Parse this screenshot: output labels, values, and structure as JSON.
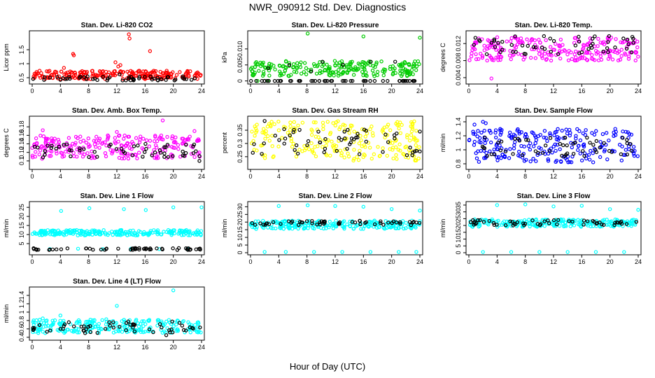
{
  "page": {
    "title": "NWR_090912 Std. Dev. Diagnostics",
    "xlabel": "Hour of Day (UTC)"
  },
  "chart_data": [
    {
      "type": "scatter",
      "title": "Stan. Dev. Li-820 CO2",
      "ylabel": "Licor ppm",
      "xlim": [
        0,
        24
      ],
      "ylim": [
        0.35,
        2.1
      ],
      "xticks": [
        0,
        4,
        8,
        12,
        16,
        20,
        24
      ],
      "yticks": [
        0.5,
        1.0,
        1.5
      ],
      "series": [
        {
          "color": "#ff0000",
          "band": [
            0.45,
            0.75
          ],
          "outliers": [
            [
              5.8,
              1.35
            ],
            [
              5.9,
              1.3
            ],
            [
              13.7,
              2.05
            ],
            [
              13.8,
              1.9
            ],
            [
              16.7,
              1.45
            ],
            [
              11.8,
              1.05
            ],
            [
              12.2,
              0.9
            ],
            [
              4.5,
              0.85
            ],
            [
              12.5,
              0.95
            ]
          ]
        },
        {
          "color": "#000000",
          "band": [
            0.4,
            0.55
          ],
          "outliers": [
            [
              12.4,
              0.62
            ]
          ]
        }
      ]
    },
    {
      "type": "scatter",
      "title": "Stan. Dev. Li-820 Pressure",
      "ylabel": "kPa",
      "xlim": [
        0,
        24
      ],
      "ylim": [
        -0.0003,
        0.015
      ],
      "xticks": [
        0,
        4,
        8,
        12,
        16,
        20,
        24
      ],
      "yticks": [
        0.0,
        0.005,
        0.01
      ],
      "series": [
        {
          "color": "#00cc00",
          "band": [
            0.0015,
            0.0063
          ],
          "outliers": [
            [
              8.1,
              0.0148
            ],
            [
              16.0,
              0.0139
            ],
            [
              24.0,
              0.0135
            ],
            [
              1.0,
              0.0
            ],
            [
              2.5,
              0.0
            ]
          ]
        },
        {
          "color": "#000000",
          "band": [
            0.0,
            0.0
          ],
          "outliers": [
            [
              2.5,
              0.004
            ],
            [
              5.5,
              0.005
            ],
            [
              10.2,
              0.006
            ],
            [
              13.1,
              0.005
            ],
            [
              17.0,
              0.006
            ],
            [
              20.5,
              0.006
            ],
            [
              8.6,
              0.003
            ]
          ]
        }
      ]
    },
    {
      "type": "scatter",
      "title": "Stan. Dev. Li-820 Temp.",
      "ylabel": "degrees C",
      "xlim": [
        0,
        24
      ],
      "ylim": [
        0.003,
        0.0145
      ],
      "xticks": [
        0,
        4,
        8,
        12,
        16,
        20,
        24
      ],
      "yticks": [
        0.004,
        0.008,
        0.012
      ],
      "series": [
        {
          "color": "#ff00ff",
          "band": [
            0.008,
            0.0135
          ],
          "outliers": [
            [
              3.2,
              0.0038
            ],
            [
              0.5,
              0.0105
            ],
            [
              1.0,
              0.0095
            ],
            [
              22.4,
              0.0112
            ],
            [
              12.8,
              0.0114
            ]
          ]
        },
        {
          "color": "#000000",
          "band": [
            0.0095,
            0.0139
          ],
          "outliers": []
        }
      ]
    },
    {
      "type": "scatter",
      "title": "Stan. Dev. Amb. Box Temp.",
      "ylabel": "degrees C",
      "xlim": [
        0,
        24
      ],
      "ylim": [
        0.085,
        0.2
      ],
      "xticks": [
        0,
        4,
        8,
        12,
        16,
        20,
        24
      ],
      "yticks": [
        0.1,
        0.12,
        0.14,
        0.16,
        0.18
      ],
      "series": [
        {
          "color": "#ff00ff",
          "band": [
            0.105,
            0.16
          ],
          "outliers": [
            [
              18.5,
              0.195
            ],
            [
              1.5,
              0.172
            ],
            [
              23.0,
              0.17
            ],
            [
              12.0,
              0.168
            ]
          ]
        },
        {
          "color": "#000000",
          "band": [
            0.108,
            0.14
          ],
          "outliers": [
            [
              23.7,
              0.1
            ]
          ]
        }
      ]
    },
    {
      "type": "scatter",
      "title": "Stan. Dev. Gas Stream RH",
      "ylabel": "percent",
      "xlim": [
        0,
        24
      ],
      "ylim": [
        0.21,
        0.395
      ],
      "xticks": [
        0,
        4,
        8,
        12,
        16,
        20,
        24
      ],
      "yticks": [
        0.25,
        0.3,
        0.35
      ],
      "series": [
        {
          "color": "#ffff00",
          "band": [
            0.235,
            0.385
          ],
          "outliers": []
        },
        {
          "color": "#000000",
          "band": [
            0.255,
            0.355
          ],
          "outliers": [
            [
              2.0,
              0.385
            ],
            [
              24.0,
              0.345
            ]
          ]
        }
      ]
    },
    {
      "type": "scatter",
      "title": "Stan. Dev. Sample Flow",
      "ylabel": "ml/min",
      "xlim": [
        0,
        24
      ],
      "ylim": [
        0.75,
        1.45
      ],
      "xticks": [
        0,
        4,
        8,
        12,
        16,
        20,
        24
      ],
      "yticks": [
        0.8,
        1.0,
        1.2,
        1.4
      ],
      "series": [
        {
          "color": "#0000ff",
          "band": [
            0.82,
            1.3
          ],
          "outliers": [
            [
              2.0,
              1.4
            ],
            [
              2.4,
              1.38
            ],
            [
              0.8,
              1.36
            ]
          ]
        },
        {
          "color": "#000000",
          "band": [
            0.9,
            1.18
          ],
          "outliers": []
        }
      ]
    },
    {
      "type": "scatter",
      "title": "Stan. Dev. Line 1 Flow",
      "ylabel": "ml/min",
      "xlim": [
        0,
        24
      ],
      "ylim": [
        0,
        27
      ],
      "xticks": [
        0,
        4,
        8,
        12,
        16,
        20,
        24
      ],
      "yticks": [
        5,
        10,
        15,
        20,
        25
      ],
      "series": [
        {
          "color": "#00ffff",
          "band": [
            9.5,
            12.5
          ],
          "outliers": [
            [
              4.1,
              23.0
            ],
            [
              8.1,
              24.5
            ],
            [
              13.0,
              24.0
            ],
            [
              16.1,
              23.5
            ],
            [
              20.0,
              25.0
            ],
            [
              24.0,
              25.0
            ],
            [
              2.5,
              2.0
            ],
            [
              6.5,
              2.2
            ],
            [
              10.0,
              2.0
            ],
            [
              14.0,
              2.2
            ],
            [
              18.0,
              2.0
            ],
            [
              22.0,
              2.1
            ]
          ]
        },
        {
          "color": "#000000",
          "band": [
            1.5,
            2.6
          ],
          "outliers": []
        }
      ]
    },
    {
      "type": "scatter",
      "title": "Stan. Dev. Line 2 Flow",
      "ylabel": "ml/min",
      "xlim": [
        0,
        24
      ],
      "ylim": [
        0,
        32
      ],
      "xticks": [
        0,
        4,
        8,
        12,
        16,
        20,
        24
      ],
      "yticks": [
        0,
        5,
        10,
        15,
        20,
        25,
        30
      ],
      "series": [
        {
          "color": "#00ffff",
          "band": [
            15.5,
            21.0
          ],
          "outliers": [
            [
              4.0,
              30.5
            ],
            [
              8.1,
              31.0
            ],
            [
              12.0,
              30.5
            ],
            [
              16.0,
              30.0
            ],
            [
              20.0,
              28.5
            ],
            [
              24.0,
              27.5
            ],
            [
              2.0,
              0.5
            ],
            [
              5.0,
              0.5
            ],
            [
              9.0,
              0.5
            ],
            [
              13.0,
              0.5
            ],
            [
              17.0,
              0.5
            ],
            [
              21.0,
              0.5
            ],
            [
              23.5,
              0.5
            ]
          ]
        },
        {
          "color": "#000000",
          "band": [
            18.0,
            21.0
          ],
          "outliers": []
        }
      ]
    },
    {
      "type": "scatter",
      "title": "Stan. Dev. Line 3 Flow",
      "ylabel": "ml/min",
      "xlim": [
        0,
        24
      ],
      "ylim": [
        0,
        36
      ],
      "xticks": [
        0,
        4,
        8,
        12,
        16,
        20,
        24
      ],
      "yticks": [
        0,
        5,
        10,
        15,
        20,
        25,
        30,
        35
      ],
      "series": [
        {
          "color": "#00ffff",
          "band": [
            19.0,
            24.5
          ],
          "outliers": [
            [
              4.0,
              35.0
            ],
            [
              8.0,
              35.5
            ],
            [
              12.0,
              34.0
            ],
            [
              16.0,
              34.5
            ],
            [
              20.0,
              32.0
            ],
            [
              24.0,
              31.5
            ],
            [
              2.0,
              0.5
            ],
            [
              6.0,
              0.5
            ],
            [
              10.0,
              0.5
            ],
            [
              14.0,
              0.5
            ],
            [
              18.0,
              0.5
            ],
            [
              22.0,
              0.5
            ]
          ]
        },
        {
          "color": "#000000",
          "band": [
            20.0,
            24.0
          ],
          "outliers": []
        }
      ]
    },
    {
      "type": "scatter",
      "title": "Stan. Dev. Line 4 (LT) Flow",
      "ylabel": "ml/min",
      "xlim": [
        0,
        24
      ],
      "ylim": [
        0.38,
        1.55
      ],
      "xticks": [
        0,
        4,
        8,
        12,
        16,
        20,
        24
      ],
      "yticks": [
        0.4,
        0.6,
        0.8,
        1.0,
        1.2,
        1.4
      ],
      "series": [
        {
          "color": "#00ffff",
          "band": [
            0.5,
            0.82
          ],
          "outliers": [
            [
              20.0,
              1.52
            ],
            [
              12.0,
              1.15
            ],
            [
              4.0,
              0.92
            ],
            [
              1.5,
              0.85
            ],
            [
              10.5,
              0.83
            ]
          ]
        },
        {
          "color": "#000000",
          "band": [
            0.5,
            0.78
          ],
          "outliers": [
            [
              19.0,
              0.45
            ],
            [
              7.5,
              0.5
            ]
          ]
        }
      ]
    }
  ]
}
